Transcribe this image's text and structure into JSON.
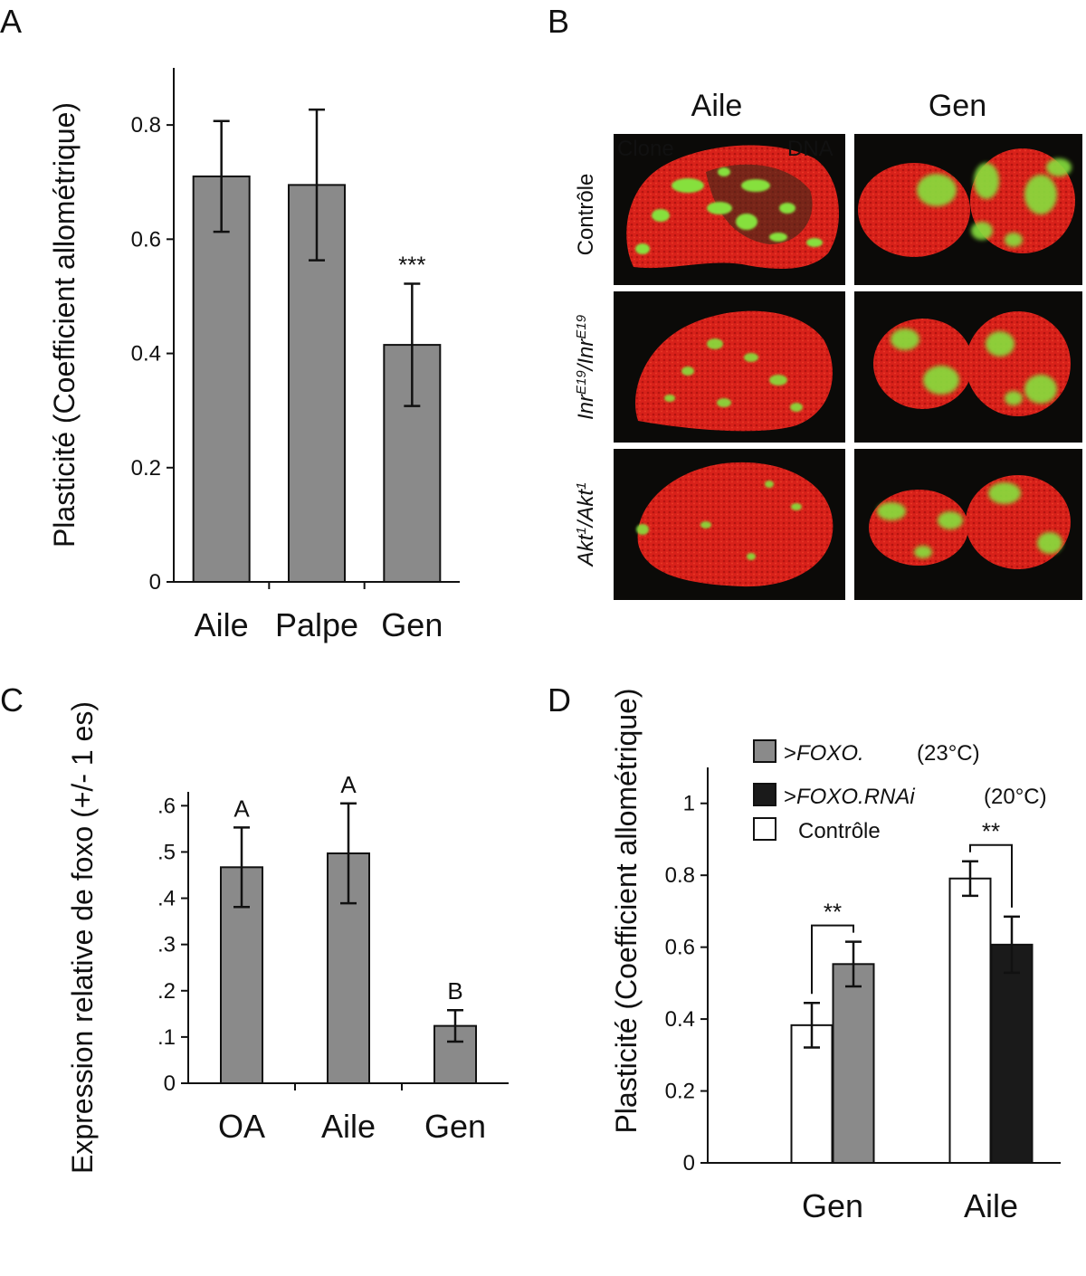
{
  "panels": {
    "a": {
      "letter": "A"
    },
    "b": {
      "letter": "B"
    },
    "c": {
      "letter": "C"
    },
    "d": {
      "letter": "D"
    }
  },
  "micrographs": {
    "columns": [
      "Aile",
      "Gen"
    ],
    "rows": [
      "Contrôle",
      "InrE19/InrE19",
      "Akt1/Akt1"
    ],
    "channel_labels": {
      "clone": "Clone",
      "dna": "DNA"
    },
    "clone_color": "#7CE03A",
    "dna_color": "#D8211A"
  },
  "chart_data": [
    {
      "panel": "A",
      "type": "bar",
      "categories": [
        "Aile",
        "Palpe",
        "Gen"
      ],
      "values": [
        0.71,
        0.695,
        0.415
      ],
      "errors": [
        0.097,
        0.132,
        0.107
      ],
      "annotations": [
        "",
        "",
        "***"
      ],
      "ylabel": "Plasticité (Coefficient allométrique)",
      "xlabel": "",
      "ylim": [
        0,
        0.9
      ],
      "yticks": [
        0,
        0.2,
        0.4,
        0.6,
        0.8
      ],
      "ytick_labels": [
        "0",
        "0.2",
        "0.4",
        "0.6",
        "0.8"
      ],
      "bar_color": "#8a8a8a"
    },
    {
      "panel": "C",
      "type": "bar",
      "categories": [
        "OA",
        "Aile",
        "Gen"
      ],
      "values": [
        0.467,
        0.497,
        0.124
      ],
      "errors": [
        0.086,
        0.108,
        0.034
      ],
      "annotations": [
        "A",
        "A",
        "B"
      ],
      "ylabel": "Expression relative de foxo (+/- 1 es)",
      "xlabel": "",
      "ylim": [
        0,
        0.63
      ],
      "yticks": [
        0,
        0.1,
        0.2,
        0.3,
        0.4,
        0.5,
        0.6
      ],
      "ytick_labels": [
        "0",
        ".1",
        ".2",
        ".3",
        ".4",
        ".5",
        ".6"
      ],
      "bar_color": "#8a8a8a"
    },
    {
      "panel": "D",
      "type": "bar",
      "categories": [
        "Gen",
        "Aile"
      ],
      "series": [
        {
          "name": "Contrôle",
          "values": [
            0.383,
            null
          ],
          "errors": [
            0.062,
            null
          ],
          "color": "#ffffff"
        },
        {
          "name": ">FOXO.",
          "condition": "(23°C)",
          "values": [
            0.553,
            null
          ],
          "errors": [
            0.062,
            null
          ],
          "color": "#8a8a8a"
        },
        {
          "name": "Contrôle",
          "values": [
            null,
            0.791
          ],
          "errors": [
            null,
            0.048
          ],
          "color": "#ffffff"
        },
        {
          "name": ">FOXO.RNAi",
          "condition": "(20°C)",
          "values": [
            null,
            0.607
          ],
          "errors": [
            null,
            0.078
          ],
          "color": "#1a1a1a"
        }
      ],
      "legend": [
        {
          "label": ">FOXO.",
          "condition": "(23°C)",
          "color": "#8a8a8a"
        },
        {
          "label": ">FOXO.RNAi",
          "condition": "(20°C)",
          "color": "#1a1a1a"
        },
        {
          "label": "Contrôle",
          "condition": "",
          "color": "#ffffff"
        }
      ],
      "significance": [
        {
          "group": "Gen",
          "label": "**"
        },
        {
          "group": "Aile",
          "label": "**"
        }
      ],
      "ylabel": "Plasticité (Coefficient allométrique)",
      "xlabel": "",
      "ylim": [
        0,
        1.1
      ],
      "yticks": [
        0,
        0.2,
        0.4,
        0.6,
        0.8,
        1
      ],
      "ytick_labels": [
        "0",
        "0.2",
        "0.4",
        "0.6",
        "0.8",
        "1"
      ],
      "legend_position": "top-left"
    }
  ]
}
